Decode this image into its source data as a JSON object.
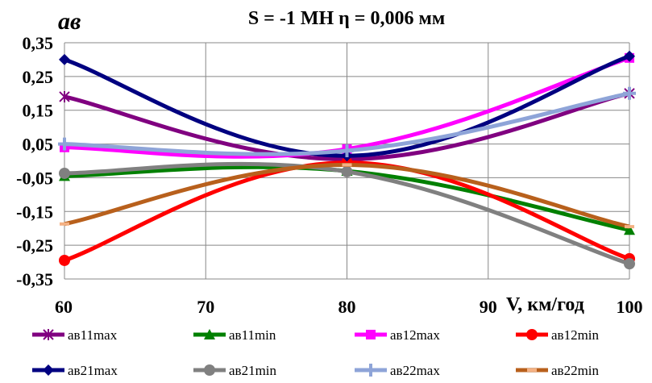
{
  "chart_data": {
    "type": "line",
    "title": "S = -1 МН  η = 0,006 мм",
    "ylabel": "aв",
    "xlabel": "V, км/год",
    "x": [
      60,
      80,
      100
    ],
    "xlim": [
      60,
      100
    ],
    "ylim": [
      -0.35,
      0.35
    ],
    "xticks": [
      "60",
      "70",
      "80",
      "90",
      "100"
    ],
    "yticks": [
      "0,35",
      "0,25",
      "0,15",
      "0,05",
      "-0,05",
      "-0,15",
      "-0,25",
      "-0,35"
    ],
    "grid": true,
    "legend_position": "bottom",
    "series": [
      {
        "name": "aв11max",
        "color": "#800080",
        "marker": "star",
        "values": [
          0.19,
          0.005,
          0.2
        ]
      },
      {
        "name": "aв11min",
        "color": "#008000",
        "marker": "triangle",
        "values": [
          -0.045,
          -0.03,
          -0.205
        ]
      },
      {
        "name": "aв12max",
        "color": "#ff00ff",
        "marker": "square",
        "values": [
          0.04,
          0.035,
          0.305
        ]
      },
      {
        "name": "aв12min",
        "color": "#ff0000",
        "marker": "circle",
        "values": [
          -0.295,
          -0.005,
          -0.29
        ]
      },
      {
        "name": "aв21max",
        "color": "#000080",
        "marker": "diamond",
        "values": [
          0.3,
          0.015,
          0.31
        ]
      },
      {
        "name": "aв21min",
        "color": "#808080",
        "marker": "circle",
        "values": [
          -0.037,
          -0.032,
          -0.305
        ]
      },
      {
        "name": "aв22max",
        "color": "#8ea4d8",
        "marker": "plus",
        "values": [
          0.05,
          0.03,
          0.2
        ]
      },
      {
        "name": "aв22min",
        "color": "#b8601c",
        "marker": "dash",
        "values": [
          -0.187,
          -0.012,
          -0.195
        ]
      }
    ]
  }
}
